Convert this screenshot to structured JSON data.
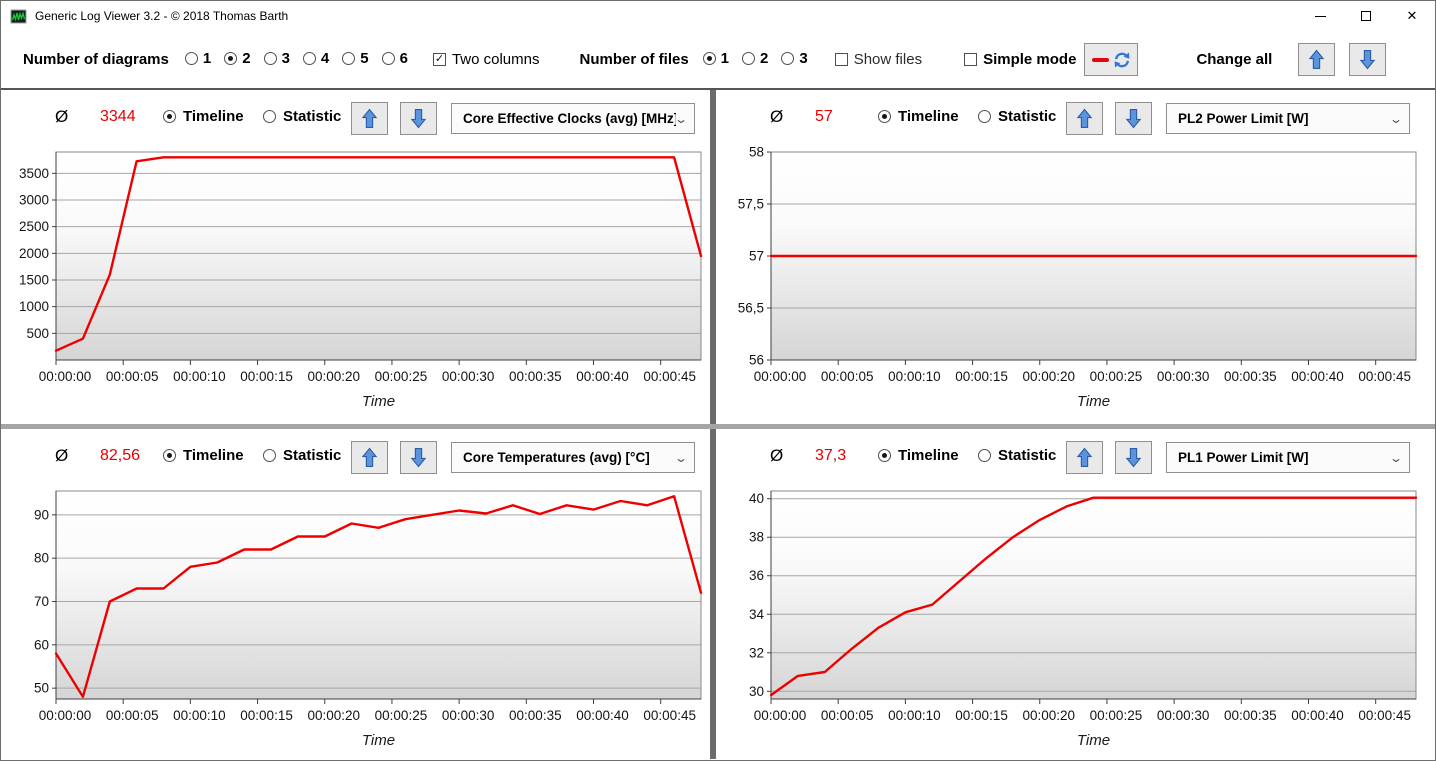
{
  "window": {
    "title": "Generic Log Viewer 3.2 - © 2018 Thomas Barth",
    "controls": {
      "minimize": "minimize",
      "maximize": "maximize",
      "close": "✕"
    }
  },
  "toolbar": {
    "diagrams_label": "Number of diagrams",
    "diagram_options": [
      "1",
      "2",
      "3",
      "4",
      "5",
      "6"
    ],
    "diagrams_selected": "2",
    "two_columns_label": "Two columns",
    "two_columns_checked": true,
    "files_label": "Number of files",
    "file_options": [
      "1",
      "2",
      "3"
    ],
    "files_selected": "1",
    "show_files_label": "Show files",
    "show_files_checked": false,
    "simple_mode_label": "Simple mode",
    "simple_mode_checked": false,
    "change_all_label": "Change all",
    "check_glyph": "✓"
  },
  "colors": {
    "line_red": "#ee0000",
    "avg_red": "#e60000",
    "arrow_blue": "#4f86d2",
    "arrow_blue_dark": "#2c5da8"
  },
  "panels": [
    {
      "avg_symbol": "Ø",
      "avg_value": "3344",
      "timeline_label": "Timeline",
      "statistic_label": "Statistic",
      "mode": "timeline",
      "dropdown_value": "Core Effective Clocks (avg) [MHz]",
      "chart_data": {
        "type": "line",
        "color": "#ee0000",
        "xlabel": "Time",
        "xlim": [
          0,
          48
        ],
        "ylim": [
          0,
          3900
        ],
        "x": [
          0,
          2,
          4,
          6,
          8,
          10,
          12,
          14,
          16,
          18,
          20,
          22,
          24,
          26,
          28,
          30,
          32,
          34,
          36,
          38,
          40,
          42,
          44,
          46,
          48
        ],
        "y": [
          175,
          400,
          1600,
          3725,
          3800,
          3800,
          3800,
          3800,
          3800,
          3800,
          3800,
          3800,
          3800,
          3800,
          3800,
          3800,
          3800,
          3800,
          3800,
          3800,
          3800,
          3800,
          3800,
          3800,
          1950
        ],
        "ytick_values": [
          500,
          1000,
          1500,
          2000,
          2500,
          3000,
          3500
        ],
        "ytick_labels": [
          "500",
          "1000",
          "1500",
          "2000",
          "2500",
          "3000",
          "3500"
        ],
        "xtick_values": [
          0,
          5,
          10,
          15,
          20,
          25,
          30,
          35,
          40,
          45
        ],
        "xtick_labels": [
          "00:00:00",
          "00:00:05",
          "00:00:10",
          "00:00:15",
          "00:00:20",
          "00:00:25",
          "00:00:30",
          "00:00:35",
          "00:00:40",
          "00:00:45"
        ]
      }
    },
    {
      "avg_symbol": "Ø",
      "avg_value": "57",
      "timeline_label": "Timeline",
      "statistic_label": "Statistic",
      "mode": "timeline",
      "dropdown_value": "PL2 Power Limit [W]",
      "chart_data": {
        "type": "line",
        "color": "#ee0000",
        "xlabel": "Time",
        "xlim": [
          0,
          48
        ],
        "ylim": [
          56,
          58
        ],
        "x": [
          0,
          2,
          4,
          6,
          8,
          10,
          12,
          14,
          16,
          18,
          20,
          22,
          24,
          26,
          28,
          30,
          32,
          34,
          36,
          38,
          40,
          42,
          44,
          46,
          48
        ],
        "y": [
          57,
          57,
          57,
          57,
          57,
          57,
          57,
          57,
          57,
          57,
          57,
          57,
          57,
          57,
          57,
          57,
          57,
          57,
          57,
          57,
          57,
          57,
          57,
          57,
          57
        ],
        "ytick_values": [
          56,
          56.5,
          57,
          57.5,
          58
        ],
        "ytick_labels": [
          "56",
          "56,5",
          "57",
          "57,5",
          "58"
        ],
        "xtick_values": [
          0,
          5,
          10,
          15,
          20,
          25,
          30,
          35,
          40,
          45
        ],
        "xtick_labels": [
          "00:00:00",
          "00:00:05",
          "00:00:10",
          "00:00:15",
          "00:00:20",
          "00:00:25",
          "00:00:30",
          "00:00:35",
          "00:00:40",
          "00:00:45"
        ]
      }
    },
    {
      "avg_symbol": "Ø",
      "avg_value": "82,56",
      "timeline_label": "Timeline",
      "statistic_label": "Statistic",
      "mode": "timeline",
      "dropdown_value": "Core Temperatures (avg) [°C]",
      "chart_data": {
        "type": "line",
        "color": "#ee0000",
        "xlabel": "Time",
        "xlim": [
          0,
          48
        ],
        "ylim": [
          47.5,
          95.5
        ],
        "x": [
          0,
          2,
          4,
          6,
          8,
          10,
          12,
          14,
          16,
          18,
          20,
          22,
          24,
          26,
          28,
          30,
          32,
          34,
          36,
          38,
          40,
          42,
          44,
          46,
          48
        ],
        "y": [
          58,
          48,
          70,
          73,
          73,
          78,
          79,
          82,
          82,
          85,
          85,
          88,
          87,
          89,
          90,
          91,
          90.3,
          92.2,
          90.2,
          92.2,
          91.2,
          93.2,
          92.2,
          94.3,
          72
        ],
        "ytick_values": [
          50,
          60,
          70,
          80,
          90
        ],
        "ytick_labels": [
          "50",
          "60",
          "70",
          "80",
          "90"
        ],
        "xtick_values": [
          0,
          5,
          10,
          15,
          20,
          25,
          30,
          35,
          40,
          45
        ],
        "xtick_labels": [
          "00:00:00",
          "00:00:05",
          "00:00:10",
          "00:00:15",
          "00:00:20",
          "00:00:25",
          "00:00:30",
          "00:00:35",
          "00:00:40",
          "00:00:45"
        ]
      }
    },
    {
      "avg_symbol": "Ø",
      "avg_value": "37,3",
      "timeline_label": "Timeline",
      "statistic_label": "Statistic",
      "mode": "timeline",
      "dropdown_value": "PL1 Power Limit [W]",
      "chart_data": {
        "type": "line",
        "color": "#ee0000",
        "xlabel": "Time",
        "xlim": [
          0,
          48
        ],
        "ylim": [
          29.6,
          40.4
        ],
        "x": [
          0,
          2,
          4,
          6,
          8,
          10,
          12,
          14,
          16,
          18,
          20,
          22,
          24,
          26,
          28,
          30,
          32,
          34,
          36,
          38,
          40,
          42,
          44,
          46,
          48
        ],
        "y": [
          29.8,
          30.8,
          31,
          32.2,
          33.3,
          34.1,
          34.5,
          35.7,
          36.9,
          38,
          38.9,
          39.6,
          40.05,
          40.05,
          40.05,
          40.05,
          40.05,
          40.05,
          40.05,
          40.05,
          40.05,
          40.05,
          40.05,
          40.05,
          40.05
        ],
        "ytick_values": [
          30,
          32,
          34,
          36,
          38,
          40
        ],
        "ytick_labels": [
          "30",
          "32",
          "34",
          "36",
          "38",
          "40"
        ],
        "xtick_values": [
          0,
          5,
          10,
          15,
          20,
          25,
          30,
          35,
          40,
          45
        ],
        "xtick_labels": [
          "00:00:00",
          "00:00:05",
          "00:00:10",
          "00:00:15",
          "00:00:20",
          "00:00:25",
          "00:00:30",
          "00:00:35",
          "00:00:40",
          "00:00:45"
        ]
      }
    }
  ]
}
